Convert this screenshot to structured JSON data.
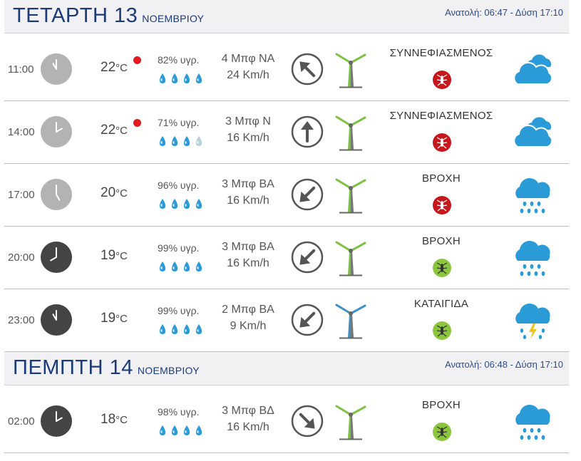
{
  "days": [
    {
      "name": "ΤΕΤΑΡΤΗ 13",
      "month": "ΝΟΕΜΒΡΙΟΥ",
      "sun": "Ανατολή: 06:47  - Δύση 17:10",
      "rows": [
        {
          "time": "11:00",
          "clock": "light",
          "hour": 11,
          "temp": "22",
          "warn": true,
          "humidity": "82% υγρ.",
          "drops": 4,
          "bft": "4 Μπφ ΝΑ",
          "kmh": "24 Km/h",
          "arrow": "north-west",
          "turbine": "green",
          "condition": "ΣΥΝΝΕΦΙΑΣΜΕΝΟΣ",
          "mosquito": "red",
          "icon": "cloudy-icon"
        },
        {
          "time": "14:00",
          "clock": "light",
          "hour": 14,
          "temp": "22",
          "warn": true,
          "humidity": "71% υγρ.",
          "drops": 3,
          "bft": "3 Μπφ Ν",
          "kmh": "16 Km/h",
          "arrow": "north",
          "turbine": "green",
          "condition": "ΣΥΝΝΕΦΙΑΣΜΕΝΟΣ",
          "mosquito": "red",
          "icon": "cloudy-icon"
        },
        {
          "time": "17:00",
          "clock": "light",
          "hour": 17,
          "temp": "20",
          "warn": false,
          "humidity": "96% υγρ.",
          "drops": 4,
          "bft": "3 Μπφ ΒΑ",
          "kmh": "16 Km/h",
          "arrow": "south-west",
          "turbine": "green",
          "condition": "ΒΡΟΧΗ",
          "mosquito": "red",
          "icon": "rain-icon"
        },
        {
          "time": "20:00",
          "clock": "dark",
          "hour": 20,
          "temp": "19",
          "warn": false,
          "humidity": "99% υγρ.",
          "drops": 4,
          "bft": "3 Μπφ ΒΑ",
          "kmh": "16 Km/h",
          "arrow": "south-west",
          "turbine": "green",
          "condition": "ΒΡΟΧΗ",
          "mosquito": "green",
          "icon": "rain-icon"
        },
        {
          "time": "23:00",
          "clock": "dark",
          "hour": 23,
          "temp": "19",
          "warn": false,
          "humidity": "99% υγρ.",
          "drops": 4,
          "bft": "2 Μπφ ΒΑ",
          "kmh": "9 Km/h",
          "arrow": "south-west",
          "turbine": "blue",
          "condition": "ΚΑΤΑΙΓΙΔΑ",
          "mosquito": "green",
          "icon": "storm-icon"
        }
      ]
    },
    {
      "name": "ΠΕΜΠΤΗ 14",
      "month": "ΝΟΕΜΒΡΙΟΥ",
      "sun": "Ανατολή: 06:48  - Δύση 17:10",
      "rows": [
        {
          "time": "02:00",
          "clock": "dark",
          "hour": 2,
          "temp": "18",
          "warn": false,
          "humidity": "98% υγρ.",
          "drops": 4,
          "bft": "3 Μπφ ΒΔ",
          "kmh": "16 Km/h",
          "arrow": "south-east",
          "turbine": "green",
          "condition": "ΒΡΟΧΗ",
          "mosquito": "green",
          "icon": "rain-icon"
        }
      ]
    }
  ],
  "unit": "°C",
  "colors": {
    "header_bg": "#f1f1f3",
    "header_text": "#1a3a7a",
    "warning": "#e5191e",
    "drop": "#2b9bd8",
    "drop_empty": "#b8d0de",
    "icon_blue": "#2b9bd8",
    "turbine_green": "#7cc242",
    "turbine_blue": "#3d8fc6",
    "mosquito_red": "#c8161d",
    "mosquito_green": "#8cc63f",
    "clock_light": "#b3b3b3",
    "clock_dark": "#444444"
  }
}
